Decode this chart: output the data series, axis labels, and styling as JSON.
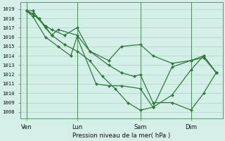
{
  "title": "Pression niveau de la mer( hPa )",
  "ylabel_ticks": [
    1008,
    1009,
    1010,
    1011,
    1012,
    1013,
    1014,
    1015,
    1016,
    1017,
    1018,
    1019
  ],
  "ylim": [
    1007.3,
    1019.7
  ],
  "background_color": "#d4eee8",
  "grid_color": "#b0d4c8",
  "line_color": "#2d7a3a",
  "marker_color": "#2d7a3a",
  "vline_color": "#4a8a5a",
  "x_tick_labels": [
    "Ven",
    "Lun",
    "Sam",
    "Dim"
  ],
  "x_tick_positions": [
    0,
    40,
    90,
    130
  ],
  "vline_positions": [
    0,
    40,
    90,
    130
  ],
  "xlim": [
    -5,
    155
  ],
  "series_x": [
    [
      0,
      5,
      15,
      20,
      25,
      40,
      50,
      65,
      75,
      90,
      100,
      115,
      130,
      140,
      150
    ],
    [
      0,
      5,
      15,
      20,
      30,
      40,
      50,
      65,
      75,
      85,
      90,
      100,
      115,
      130,
      140,
      150
    ],
    [
      0,
      5,
      15,
      25,
      35,
      40,
      55,
      65,
      75,
      90,
      100,
      115,
      130,
      140,
      150
    ],
    [
      0,
      10,
      20,
      30,
      40,
      50,
      60,
      70,
      80,
      90,
      100,
      115,
      130,
      140,
      150
    ]
  ],
  "series_y": [
    [
      1018.8,
      1018.8,
      1017.0,
      1016.2,
      1016.8,
      1016.2,
      1014.5,
      1013.5,
      1015.0,
      1015.2,
      1014.0,
      1013.2,
      1013.5,
      1013.8,
      1012.2
    ],
    [
      1018.8,
      1018.5,
      1017.2,
      1016.8,
      1016.2,
      1017.0,
      1014.5,
      1013.0,
      1012.2,
      1011.8,
      1012.0,
      1009.0,
      1009.0,
      1008.2,
      1010.0,
      1012.2
    ],
    [
      1018.8,
      1018.2,
      1016.0,
      1015.0,
      1014.0,
      1016.0,
      1011.0,
      1010.8,
      1010.8,
      1010.5,
      1008.5,
      1009.8,
      1012.5,
      1014.0,
      1012.2
    ],
    [
      1018.8,
      1018.0,
      1016.2,
      1015.2,
      1014.5,
      1013.5,
      1011.8,
      1010.5,
      1009.0,
      1008.2,
      1008.5,
      1012.8,
      1013.5,
      1014.0,
      1012.2
    ]
  ]
}
